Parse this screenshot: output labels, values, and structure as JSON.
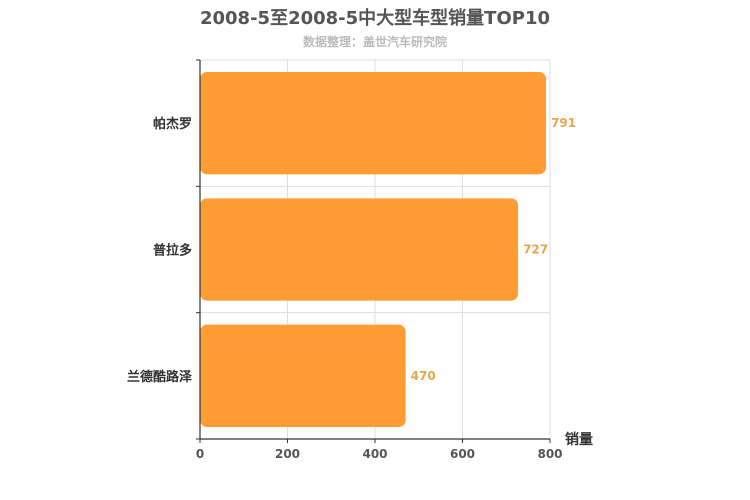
{
  "chart_data": {
    "type": "bar",
    "orientation": "horizontal",
    "title": "2008-5至2008-5中大型车型销量TOP10",
    "subtitle": "数据整理：盖世汽车研究院",
    "xlabel": "销量",
    "ylabel": "",
    "categories": [
      "帕杰罗",
      "普拉多",
      "兰德酷路泽"
    ],
    "values": [
      791,
      727,
      470
    ],
    "xlim": [
      0,
      800
    ],
    "xticks": [
      "0",
      "200",
      "400",
      "600",
      "800"
    ],
    "grid": true,
    "bar_color": "#ff9c33",
    "label_color": "#e8a54f"
  }
}
